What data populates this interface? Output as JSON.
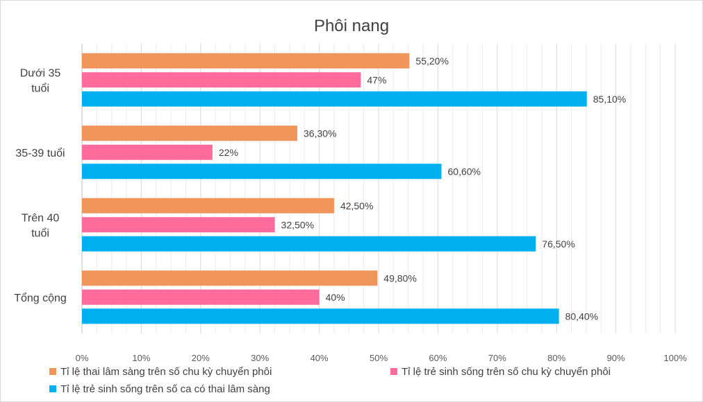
{
  "chart_data": {
    "type": "bar",
    "orientation": "horizontal",
    "title": "Phôi nang",
    "categories": [
      [
        "Dưới 35",
        "tuổi"
      ],
      [
        "35-39 tuổi"
      ],
      [
        "Trên 40",
        "tuổi"
      ],
      [
        "Tổng cộng"
      ]
    ],
    "series": [
      {
        "name": "Tỉ lệ thai lâm sàng trên số chu kỳ chuyển phôi",
        "color": "#f0965a",
        "values": [
          55.2,
          36.3,
          42.5,
          49.8
        ],
        "labels": [
          "55,20%",
          "36,30%",
          "42,50%",
          "49,80%"
        ]
      },
      {
        "name": "Tỉ lệ trẻ sinh sống trên số chu kỳ chuyển phôi",
        "color": "#ff6b9b",
        "values": [
          47,
          22,
          32.5,
          40
        ],
        "labels": [
          "47%",
          "22%",
          "32,50%",
          "40%"
        ]
      },
      {
        "name": "Tỉ lệ trẻ sinh sống trên số ca có thai lâm sàng",
        "color": "#00b0f0",
        "values": [
          85.1,
          60.6,
          76.5,
          80.4
        ],
        "labels": [
          "85,10%",
          "60,60%",
          "76,50%",
          "80,40%"
        ]
      }
    ],
    "xlim": [
      0,
      100
    ],
    "xticks": [
      0,
      10,
      20,
      30,
      40,
      50,
      60,
      70,
      80,
      90,
      100
    ],
    "xtick_labels": [
      "0%",
      "10%",
      "20%",
      "30%",
      "40%",
      "50%",
      "60%",
      "70%",
      "80%",
      "90%",
      "100%"
    ],
    "grid": "vertical major and minor",
    "legend_position": "bottom"
  }
}
